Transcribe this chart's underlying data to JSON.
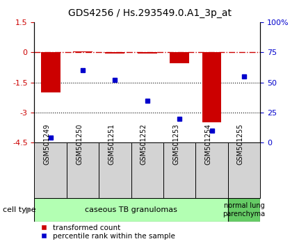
{
  "title": "GDS4256 / Hs.293549.0.A1_3p_at",
  "samples": [
    "GSM501249",
    "GSM501250",
    "GSM501251",
    "GSM501252",
    "GSM501253",
    "GSM501254",
    "GSM501255"
  ],
  "transformed_count": [
    -2.0,
    0.05,
    -0.05,
    -0.05,
    -0.55,
    -3.5,
    0.02
  ],
  "percentile_rank": [
    4,
    60,
    52,
    35,
    20,
    10,
    55
  ],
  "ylim_left": [
    -4.5,
    1.5
  ],
  "ylim_right": [
    0,
    100
  ],
  "left_ticks": [
    1.5,
    0,
    -1.5,
    -3,
    -4.5
  ],
  "left_tick_labels": [
    "1.5",
    "0",
    "-1.5",
    "-3",
    "-4.5"
  ],
  "right_ticks": [
    100,
    75,
    50,
    25,
    0
  ],
  "right_tick_labels": [
    "100%",
    "75",
    "50",
    "25",
    "0"
  ],
  "hline_y": 0,
  "dotted_lines": [
    -1.5,
    -3.0
  ],
  "bar_color": "#cc0000",
  "point_color": "#0000cc",
  "group1_label": "caseous TB granulomas",
  "group2_label": "normal lung\nparenchyma",
  "group1_count": 6,
  "group2_count": 1,
  "cell_type_label": "cell type",
  "legend_red_label": "transformed count",
  "legend_blue_label": "percentile rank within the sample",
  "group1_color": "#b3ffb3",
  "group2_color": "#66cc66",
  "left_tick_color": "#cc0000",
  "right_tick_color": "#0000cc",
  "title_fontsize": 10,
  "tick_fontsize": 8,
  "sample_fontsize": 7,
  "group_fontsize": 8,
  "legend_fontsize": 7.5
}
